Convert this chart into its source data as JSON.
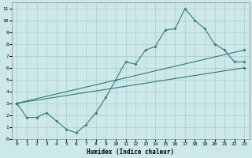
{
  "xlabel": "Humidex (Indice chaleur)",
  "ylabel": "",
  "bg_color": "#cce8e8",
  "grid_color": "#aacccc",
  "line_color": "#2d7d7d",
  "xlim": [
    -0.5,
    23.5
  ],
  "ylim": [
    0,
    11.5
  ],
  "xticks": [
    0,
    1,
    2,
    3,
    4,
    5,
    6,
    7,
    8,
    9,
    10,
    11,
    12,
    13,
    14,
    15,
    16,
    17,
    18,
    19,
    20,
    21,
    22,
    23
  ],
  "yticks": [
    0,
    1,
    2,
    3,
    4,
    5,
    6,
    7,
    8,
    9,
    10,
    11
  ],
  "line1_x": [
    0,
    1,
    2,
    3,
    4,
    5,
    6,
    7,
    8,
    9,
    10,
    11,
    12,
    13,
    14,
    15,
    16,
    17,
    18,
    19,
    20,
    21,
    22,
    23
  ],
  "line1_y": [
    3.0,
    1.8,
    1.8,
    2.2,
    1.5,
    0.8,
    0.5,
    1.2,
    2.2,
    3.5,
    5.0,
    6.5,
    6.3,
    7.5,
    7.8,
    9.2,
    9.3,
    11.0,
    10.0,
    9.3,
    8.0,
    7.5,
    6.5,
    6.5
  ],
  "line2_x": [
    0,
    23
  ],
  "line2_y": [
    3.0,
    7.5
  ],
  "line3_x": [
    0,
    23
  ],
  "line3_y": [
    3.0,
    6.0
  ]
}
